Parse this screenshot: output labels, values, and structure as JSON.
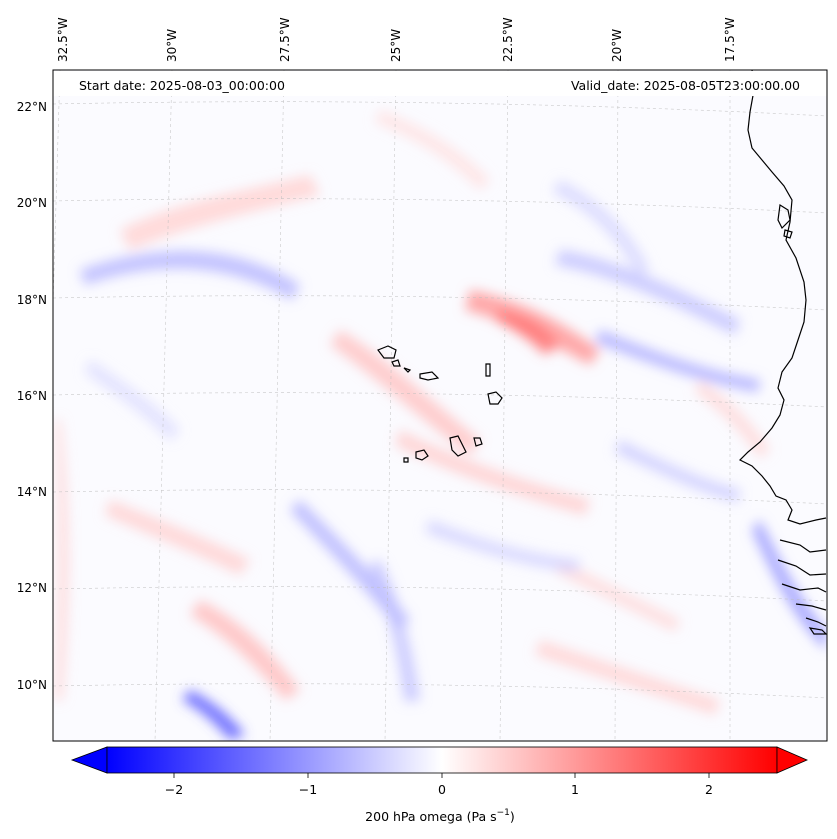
{
  "map": {
    "start_date_text": "Start date: 2025-08-03_00:00:00",
    "valid_date_text": "Valid_date: 2025-08-05T23:00:00.00",
    "variable": "200 hPa omega",
    "units_prefix": "Pa s",
    "units_exponent": "−1",
    "lon_labels": [
      "32.5°W",
      "30°W",
      "27.5°W",
      "25°W",
      "22.5°W",
      "20°W",
      "17.5°W"
    ],
    "lat_labels": [
      "22°N",
      "20°N",
      "18°N",
      "16°N",
      "14°N",
      "12°N",
      "10°N"
    ],
    "colorbar": {
      "ticks": [
        "−2",
        "−1",
        "0",
        "1",
        "2"
      ],
      "tick_values": [
        -2,
        -1,
        0,
        1,
        2
      ],
      "vmin": -2.5,
      "vmax": 2.5,
      "extend": "both",
      "colors": {
        "negative_end": "#0000ff",
        "center": "#ffffff",
        "positive_end": "#ff0000"
      }
    },
    "coastline_color": "#000000"
  }
}
